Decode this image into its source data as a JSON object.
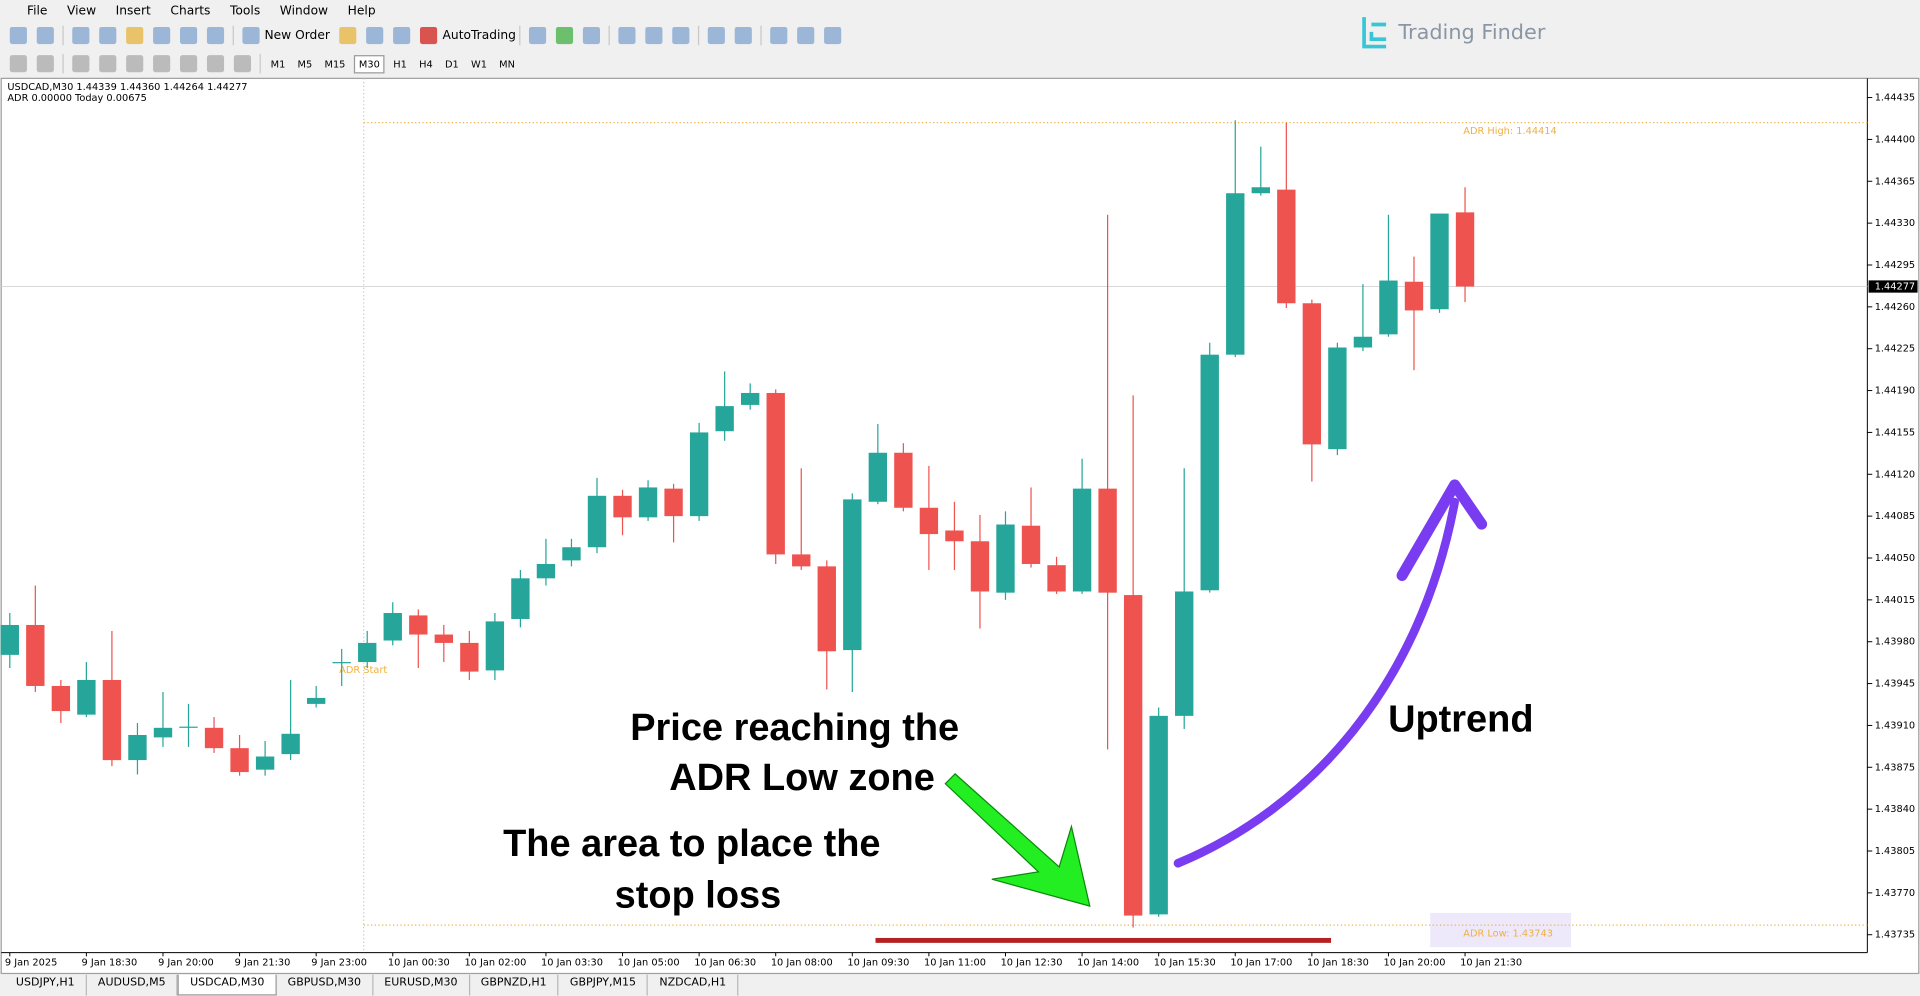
{
  "menu": [
    "File",
    "View",
    "Insert",
    "Charts",
    "Tools",
    "Window",
    "Help"
  ],
  "toolbar": {
    "new_order": "New Order",
    "auto_trading": "AutoTrading"
  },
  "timeframes": [
    "M1",
    "M5",
    "M15",
    "M30",
    "H1",
    "H4",
    "D1",
    "W1",
    "MN"
  ],
  "logo": "Trading Finder",
  "tabs": [
    "USDJPY,H1",
    "AUDUSD,M5",
    "USDCAD,M30",
    "GBPUSD,M30",
    "EURUSD,M30",
    "GBPNZD,H1",
    "GBPJPY,M15",
    "NZDCAD,H1"
  ],
  "chart_data": {
    "type": "candlestick",
    "symbol_line": "USDCAD,M30  1.44339 1.44360 1.44264 1.44277",
    "indicator_line": "ADR 0.00000  Today 0.00675",
    "up_color": "#26a69a",
    "down_color": "#ef5350",
    "categories": [
      "9 Jan 2025",
      null,
      null,
      "9 Jan 18:30",
      null,
      null,
      "9 Jan 20:00",
      null,
      null,
      "9 Jan 21:30",
      null,
      null,
      "9 Jan 23:00",
      null,
      null,
      "10 Jan 00:30",
      null,
      null,
      "10 Jan 02:00",
      null,
      null,
      "10 Jan 03:30",
      null,
      null,
      "10 Jan 05:00",
      null,
      null,
      "10 Jan 06:30",
      null,
      null,
      "10 Jan 08:00",
      null,
      null,
      "10 Jan 09:30",
      null,
      null,
      "10 Jan 11:00",
      null,
      null,
      "10 Jan 12:30",
      null,
      null,
      "10 Jan 14:00",
      null,
      null,
      "10 Jan 15:30",
      null,
      null,
      "10 Jan 17:00",
      null,
      null,
      "10 Jan 18:30",
      null,
      null,
      "10 Jan 20:00",
      null,
      null,
      "10 Jan 21:30"
    ],
    "open": [
      1.43969,
      1.43994,
      1.43943,
      1.43919,
      1.43948,
      1.43881,
      1.439,
      1.43908,
      1.43908,
      1.43891,
      1.43873,
      1.43886,
      1.43928,
      1.43962,
      1.43963,
      1.43981,
      1.44002,
      1.43986,
      1.43979,
      1.43956,
      1.43999,
      1.44033,
      1.44048,
      1.44059,
      1.44102,
      1.44084,
      1.44108,
      1.44085,
      1.44156,
      1.44178,
      1.44188,
      1.44053,
      1.44043,
      1.43973,
      1.44097,
      1.44138,
      1.44092,
      1.44073,
      1.44064,
      1.44021,
      1.44077,
      1.44044,
      1.44022,
      1.44108,
      1.44019,
      1.43752,
      1.43918,
      1.44023,
      1.4422,
      1.44355,
      1.44358,
      1.44263,
      1.44141,
      1.44226,
      1.44237,
      1.44281,
      1.44258,
      1.44339
    ],
    "high": [
      1.44004,
      1.44027,
      1.43948,
      1.43963,
      1.43989,
      1.43912,
      1.43938,
      1.43928,
      1.43917,
      1.43902,
      1.43897,
      1.43948,
      1.43943,
      1.43974,
      1.43989,
      1.44013,
      1.44007,
      1.43994,
      1.43989,
      1.44004,
      1.4404,
      1.44066,
      1.44066,
      1.44117,
      1.44107,
      1.44115,
      1.44112,
      1.44163,
      1.44206,
      1.44196,
      1.44191,
      1.44125,
      1.44048,
      1.44104,
      1.44162,
      1.44146,
      1.44127,
      1.44097,
      1.44086,
      1.44089,
      1.44109,
      1.44051,
      1.44133,
      1.44337,
      1.44186,
      1.43925,
      1.44125,
      1.4423,
      1.44416,
      1.44394,
      1.44414,
      1.44266,
      1.4423,
      1.44279,
      1.44337,
      1.44302,
      1.44338,
      1.4436
    ],
    "low": [
      1.43958,
      1.43938,
      1.43912,
      1.43917,
      1.43876,
      1.43869,
      1.43892,
      1.43892,
      1.43887,
      1.43868,
      1.43868,
      1.43881,
      1.43925,
      1.43943,
      1.43958,
      1.43977,
      1.43958,
      1.43963,
      1.43948,
      1.43948,
      1.43992,
      1.44027,
      1.44043,
      1.44054,
      1.44069,
      1.44081,
      1.44063,
      1.44081,
      1.44148,
      1.44174,
      1.44045,
      1.4404,
      1.4394,
      1.43938,
      1.44095,
      1.44089,
      1.4404,
      1.4404,
      1.43991,
      1.44015,
      1.44042,
      1.4402,
      1.4402,
      1.4389,
      1.43741,
      1.4375,
      1.43907,
      1.44021,
      1.44218,
      1.44353,
      1.44259,
      1.44114,
      1.44136,
      1.44223,
      1.44235,
      1.44207,
      1.44255,
      1.44264
    ],
    "close": [
      1.43994,
      1.43943,
      1.43922,
      1.43948,
      1.43881,
      1.43902,
      1.43908,
      1.43909,
      1.43891,
      1.43871,
      1.43884,
      1.43903,
      1.43933,
      1.43963,
      1.43979,
      1.44004,
      1.43986,
      1.43979,
      1.43955,
      1.43997,
      1.44033,
      1.44045,
      1.44059,
      1.44102,
      1.44084,
      1.44109,
      1.44085,
      1.44155,
      1.44177,
      1.44188,
      1.44053,
      1.44043,
      1.43972,
      1.44099,
      1.44138,
      1.44092,
      1.4407,
      1.44064,
      1.44022,
      1.44078,
      1.44045,
      1.44022,
      1.44108,
      1.44021,
      1.43751,
      1.43918,
      1.44022,
      1.4422,
      1.44355,
      1.4436,
      1.44263,
      1.44145,
      1.44226,
      1.44235,
      1.44282,
      1.44257,
      1.44338,
      1.44277
    ],
    "ylim": [
      1.4372,
      1.44449
    ],
    "yticks": [
      {
        "value": 1.44435,
        "label": "1.44435"
      },
      {
        "value": 1.444,
        "label": "1.44400"
      },
      {
        "value": 1.44365,
        "label": "1.44365"
      },
      {
        "value": 1.4433,
        "label": "1.44330"
      },
      {
        "value": 1.44295,
        "label": "1.44295"
      },
      {
        "value": 1.4426,
        "label": "1.44260"
      },
      {
        "value": 1.44225,
        "label": "1.44225"
      },
      {
        "value": 1.4419,
        "label": "1.44190"
      },
      {
        "value": 1.44155,
        "label": "1.44155"
      },
      {
        "value": 1.4412,
        "label": "1.44120"
      },
      {
        "value": 1.44085,
        "label": "1.44085"
      },
      {
        "value": 1.4405,
        "label": "1.44050"
      },
      {
        "value": 1.44015,
        "label": "1.44015"
      },
      {
        "value": 1.4398,
        "label": "1.43980"
      },
      {
        "value": 1.43945,
        "label": "1.43945"
      },
      {
        "value": 1.4391,
        "label": "1.43910"
      },
      {
        "value": 1.43875,
        "label": "1.43875"
      },
      {
        "value": 1.4384,
        "label": "1.43840"
      },
      {
        "value": 1.43805,
        "label": "1.43805"
      },
      {
        "value": 1.4377,
        "label": "1.43770"
      },
      {
        "value": 1.43735,
        "label": "1.43735"
      }
    ],
    "last_price": {
      "value": 1.44277,
      "label": "1.44277"
    },
    "adr_high": {
      "value": 1.44414,
      "label": "ADR High: 1.44414"
    },
    "adr_low": {
      "value": 1.43743,
      "label": "ADR Low: 1.43743"
    },
    "adr_start": "ADR Start",
    "annotations": {
      "adr_low_zone": [
        "Price reaching the",
        "ADR Low zone"
      ],
      "stop_loss": [
        "The area to place the",
        "stop loss"
      ],
      "uptrend": "Uptrend"
    }
  }
}
